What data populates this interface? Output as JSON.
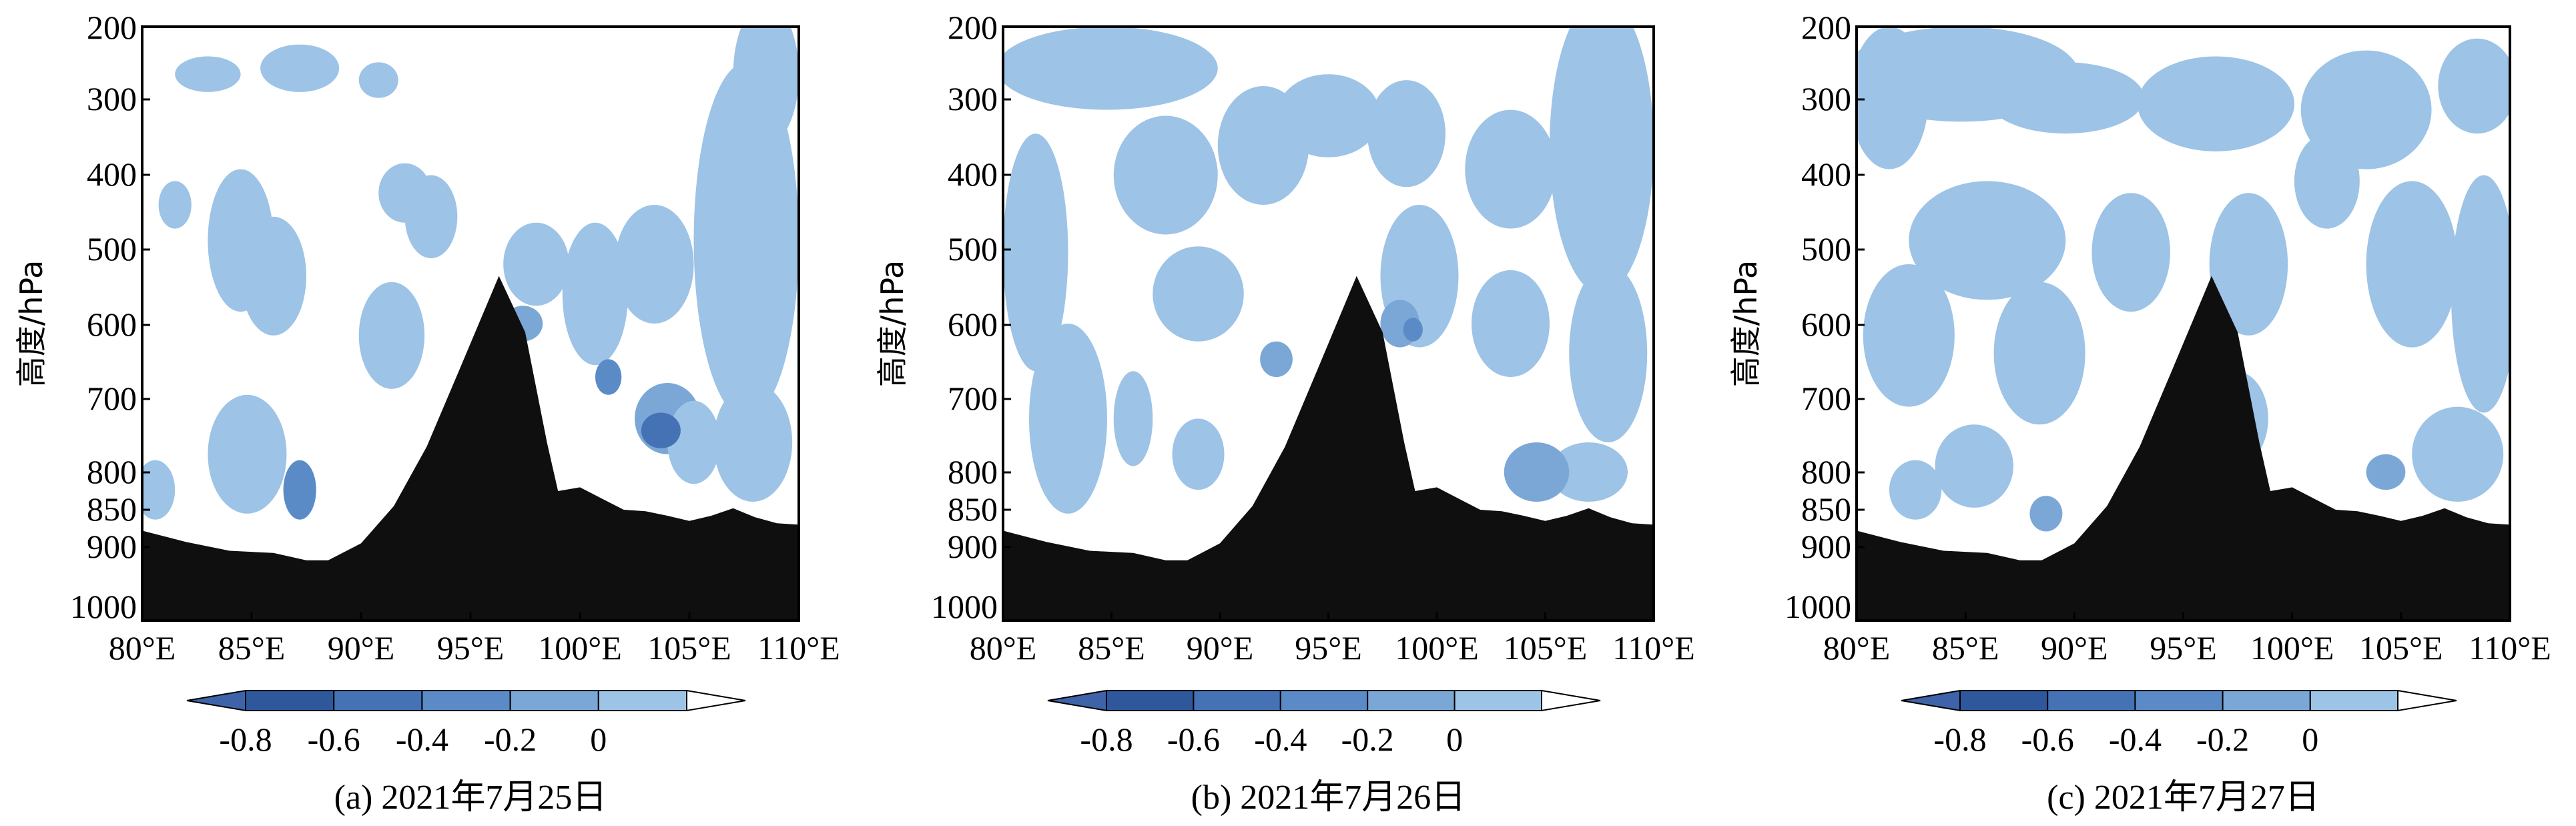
{
  "chart_data": [
    {
      "type": "heatmap",
      "caption": "(a) 2021年7月25日",
      "ylabel": "高度/hPa",
      "x_ticks": [
        "80°E",
        "85°E",
        "90°E",
        "95°E",
        "100°E",
        "105°E",
        "110°E"
      ],
      "y_ticks": [
        "200",
        "300",
        "400",
        "500",
        "600",
        "700",
        "800",
        "850",
        "900",
        "1000"
      ],
      "xlim": [
        80,
        110
      ],
      "ylim": [
        1000,
        200
      ],
      "colorbar_ticks": [
        "-0.8",
        "-0.6",
        "-0.4",
        "-0.2",
        "0"
      ],
      "colorbar_levels": [
        -0.8,
        -0.6,
        -0.4,
        -0.2,
        0
      ],
      "colorbar_extend": "both",
      "terrain_profile": {
        "lon": [
          80,
          82,
          84,
          86,
          87.5,
          88.5,
          90,
          91.5,
          93,
          94.5,
          96.3,
          97.5,
          98.5,
          99,
          100,
          101,
          102,
          103,
          104,
          105,
          106,
          107,
          108,
          109,
          110
        ],
        "pressure": [
          878,
          893,
          905,
          908,
          918,
          918,
          895,
          845,
          765,
          660,
          535,
          610,
          760,
          825,
          820,
          835,
          850,
          852,
          858,
          865,
          858,
          848,
          860,
          868,
          870
        ]
      }
    },
    {
      "type": "heatmap",
      "caption": "(b) 2021年7月26日",
      "ylabel": "高度/hPa",
      "x_ticks": [
        "80°E",
        "85°E",
        "90°E",
        "95°E",
        "100°E",
        "105°E",
        "110°E"
      ],
      "y_ticks": [
        "200",
        "300",
        "400",
        "500",
        "600",
        "700",
        "800",
        "850",
        "900",
        "1000"
      ],
      "xlim": [
        80,
        110
      ],
      "ylim": [
        1000,
        200
      ],
      "colorbar_ticks": [
        "-0.8",
        "-0.6",
        "-0.4",
        "-0.2",
        "0"
      ],
      "colorbar_levels": [
        -0.8,
        -0.6,
        -0.4,
        -0.2,
        0
      ],
      "colorbar_extend": "both",
      "terrain_profile": {
        "lon": [
          80,
          82,
          84,
          86,
          87.5,
          88.5,
          90,
          91.5,
          93,
          94.5,
          96.3,
          97.5,
          98.5,
          99,
          100,
          101,
          102,
          103,
          104,
          105,
          106,
          107,
          108,
          109,
          110
        ],
        "pressure": [
          878,
          893,
          905,
          908,
          918,
          918,
          895,
          845,
          765,
          660,
          535,
          610,
          760,
          825,
          820,
          835,
          850,
          852,
          858,
          865,
          858,
          848,
          860,
          868,
          870
        ]
      }
    },
    {
      "type": "heatmap",
      "caption": "(c) 2021年7月27日",
      "ylabel": "高度/hPa",
      "x_ticks": [
        "80°E",
        "85°E",
        "90°E",
        "95°E",
        "100°E",
        "105°E",
        "110°E"
      ],
      "y_ticks": [
        "200",
        "300",
        "400",
        "500",
        "600",
        "700",
        "800",
        "850",
        "900",
        "1000"
      ],
      "xlim": [
        80,
        110
      ],
      "ylim": [
        1000,
        200
      ],
      "colorbar_ticks": [
        "-0.8",
        "-0.6",
        "-0.4",
        "-0.2",
        "0"
      ],
      "colorbar_levels": [
        -0.8,
        -0.6,
        -0.4,
        -0.2,
        0
      ],
      "colorbar_extend": "both",
      "terrain_profile": {
        "lon": [
          80,
          82,
          84,
          86,
          87.5,
          88.5,
          90,
          91.5,
          93,
          94.5,
          96.3,
          97.5,
          98.5,
          99,
          100,
          101,
          102,
          103,
          104,
          105,
          106,
          107,
          108,
          109,
          110
        ],
        "pressure": [
          878,
          893,
          905,
          908,
          918,
          918,
          895,
          845,
          765,
          660,
          535,
          610,
          760,
          825,
          820,
          835,
          850,
          852,
          858,
          865,
          858,
          848,
          860,
          868,
          870
        ]
      }
    }
  ],
  "colors": {
    "level_0": "#9dc3e6",
    "level_1": "#7ba7d6",
    "level_2": "#5b8bc7",
    "level_3": "#4472b4",
    "level_4": "#2f579c",
    "terrain": "#0f0f0f",
    "frame": "#000000"
  }
}
